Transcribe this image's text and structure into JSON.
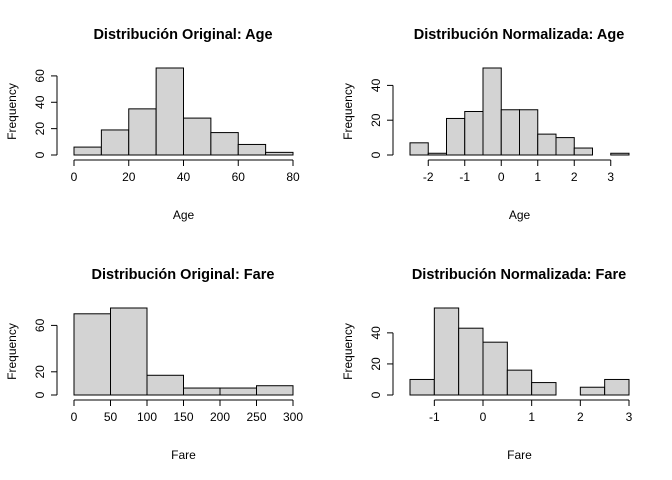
{
  "chart_data": [
    {
      "type": "bar",
      "title": "Distribución Original: Age",
      "xlabel": "Age",
      "ylabel": "Frequency",
      "bin_edges": [
        0,
        10,
        20,
        30,
        40,
        50,
        60,
        70,
        80
      ],
      "values": [
        6,
        19,
        35,
        66,
        28,
        17,
        8,
        2
      ],
      "xticks": [
        "0",
        "20",
        "40",
        "60",
        "80"
      ],
      "yticks": [
        "0",
        "20",
        "40",
        "60"
      ],
      "xlim": [
        0,
        80
      ],
      "ylim": [
        0,
        66
      ],
      "bar_color": "#d3d3d3",
      "grid": false
    },
    {
      "type": "bar",
      "title": "Distribución Normalizada: Age",
      "xlabel": "Age",
      "ylabel": "Frequency",
      "bin_edges": [
        -2.5,
        -2,
        -1.5,
        -1,
        -0.5,
        0,
        0.5,
        1,
        1.5,
        2,
        2.5,
        3,
        3.5
      ],
      "values": [
        7,
        1,
        21,
        25,
        50,
        26,
        26,
        12,
        10,
        4,
        0,
        1
      ],
      "xticks": [
        "-2",
        "-1",
        "0",
        "1",
        "2",
        "3"
      ],
      "yticks": [
        "0",
        "20",
        "40"
      ],
      "xlim": [
        -2.5,
        3.5
      ],
      "ylim": [
        0,
        50
      ],
      "bar_color": "#d3d3d3",
      "grid": false
    },
    {
      "type": "bar",
      "title": "Distribución Original: Fare",
      "xlabel": "Fare",
      "ylabel": "Frequency",
      "bin_edges": [
        0,
        50,
        100,
        150,
        200,
        250,
        300
      ],
      "values": [
        70,
        75,
        17,
        6,
        6,
        8
      ],
      "xticks": [
        "0",
        "50",
        "100",
        "150",
        "200",
        "250",
        "300"
      ],
      "yticks": [
        "0",
        "20",
        "60"
      ],
      "xlim": [
        0,
        300
      ],
      "ylim": [
        0,
        75
      ],
      "bar_color": "#d3d3d3",
      "grid": false
    },
    {
      "type": "bar",
      "title": "Distribución Normalizada: Fare",
      "xlabel": "Fare",
      "ylabel": "Frequency",
      "bin_edges": [
        -1.5,
        -1,
        -0.5,
        0,
        0.5,
        1,
        1.5,
        2,
        2.5,
        3
      ],
      "values": [
        10,
        56,
        43,
        34,
        16,
        8,
        0,
        5,
        10
      ],
      "xticks": [
        "-1",
        "0",
        "1",
        "2",
        "3"
      ],
      "yticks": [
        "0",
        "20",
        "40"
      ],
      "xlim": [
        -1.5,
        3
      ],
      "ylim": [
        0,
        56
      ],
      "bar_color": "#d3d3d3",
      "grid": false
    }
  ]
}
